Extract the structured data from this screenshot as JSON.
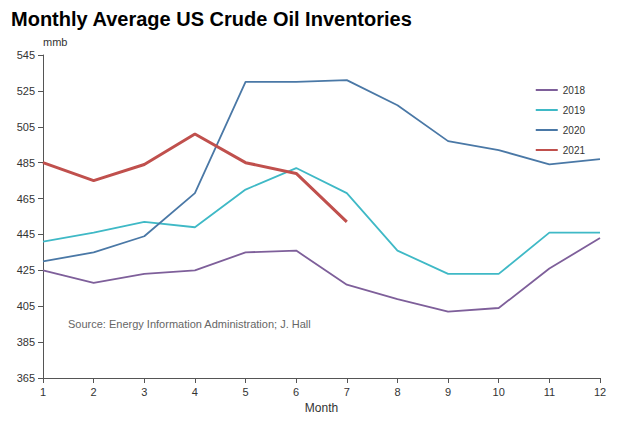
{
  "chart_data": {
    "type": "line",
    "title": "Monthly Average US Crude Oil Inventories",
    "y_label": "mmb",
    "x_label": "Month",
    "annotation": "Source: Energy Information Administration; J. Hall",
    "x": [
      1,
      2,
      3,
      4,
      5,
      6,
      7,
      8,
      9,
      10,
      11,
      12
    ],
    "xlim": [
      1,
      12
    ],
    "xticks": [
      1,
      2,
      3,
      4,
      5,
      6,
      7,
      8,
      9,
      10,
      11,
      12
    ],
    "ylim": [
      365,
      545
    ],
    "yticks": [
      365,
      385,
      405,
      425,
      445,
      465,
      485,
      505,
      525,
      545
    ],
    "grid": false,
    "legend": "upper right",
    "series": [
      {
        "name": "2018",
        "color": "#7e5f9a",
        "values": [
          425,
          418,
          423,
          425,
          435,
          436,
          417,
          409,
          402,
          404,
          426,
          443
        ]
      },
      {
        "name": "2019",
        "color": "#3fb9c6",
        "values": [
          441,
          446,
          452,
          449,
          470,
          482,
          468,
          436,
          423,
          423,
          446,
          446
        ]
      },
      {
        "name": "2020",
        "color": "#4a78a6",
        "values": [
          430,
          435,
          444,
          468,
          530,
          530,
          531,
          517,
          497,
          492,
          484,
          487
        ]
      },
      {
        "name": "2021",
        "color": "#c0504d",
        "values": [
          485,
          475,
          484,
          501,
          485,
          479,
          452,
          null,
          null,
          null,
          null,
          null
        ]
      }
    ]
  }
}
